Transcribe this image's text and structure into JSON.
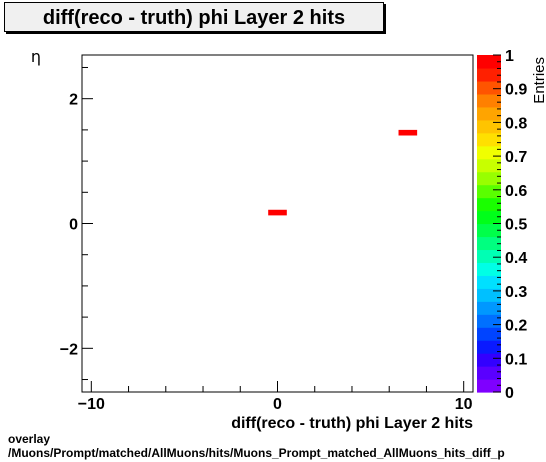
{
  "title": "diff(reco - truth) phi Layer 2 hits",
  "footer": {
    "line1": "overlay",
    "line2": "/Muons/Prompt/matched/AllMuons/hits/Muons_Prompt_matched_AllMuons_hits_diff_p"
  },
  "chart_data": {
    "type": "heatmap",
    "title": "diff(reco - truth) phi Layer 2 hits",
    "xlabel": "diff(reco - truth) phi Layer 2 hits",
    "ylabel": "η",
    "zlabel": "Entries",
    "xlim": [
      -10.5,
      10.5
    ],
    "ylim": [
      -2.7,
      2.7
    ],
    "zlim": [
      0,
      1
    ],
    "x_ticks": [
      -10,
      0,
      10
    ],
    "x_tick_labels": [
      "−10",
      "0",
      "10"
    ],
    "y_ticks": [
      -2,
      0,
      2
    ],
    "y_tick_labels": [
      "−2",
      "0",
      "2"
    ],
    "z_ticks": [
      0,
      0.1,
      0.2,
      0.3,
      0.4,
      0.5,
      0.6,
      0.7,
      0.8,
      0.9,
      1
    ],
    "z_tick_labels": [
      "0",
      "0.1",
      "0.2",
      "0.3",
      "0.4",
      "0.5",
      "0.6",
      "0.7",
      "0.8",
      "0.9",
      "1"
    ],
    "cells": [
      {
        "x0": -0.5,
        "x1": 0.5,
        "y0": 0.13,
        "y1": 0.22,
        "z": 1
      },
      {
        "x0": 6.5,
        "x1": 7.5,
        "y0": 1.41,
        "y1": 1.5,
        "z": 1
      }
    ],
    "palette": [
      "#7f00ff",
      "#5a00ff",
      "#3300ff",
      "#0a1aff",
      "#0044ff",
      "#0070ff",
      "#0098ff",
      "#00c0ff",
      "#00e0ff",
      "#00ffe6",
      "#00ffb4",
      "#00ff80",
      "#00ff4a",
      "#00ff1a",
      "#1aff00",
      "#5aff00",
      "#98ff00",
      "#c8ff00",
      "#f0ff00",
      "#ffe000",
      "#ffc400",
      "#ffa400",
      "#ff8000",
      "#ff5400",
      "#ff2000",
      "#ff0000"
    ],
    "grid": false,
    "legend": "colorbar-right"
  }
}
